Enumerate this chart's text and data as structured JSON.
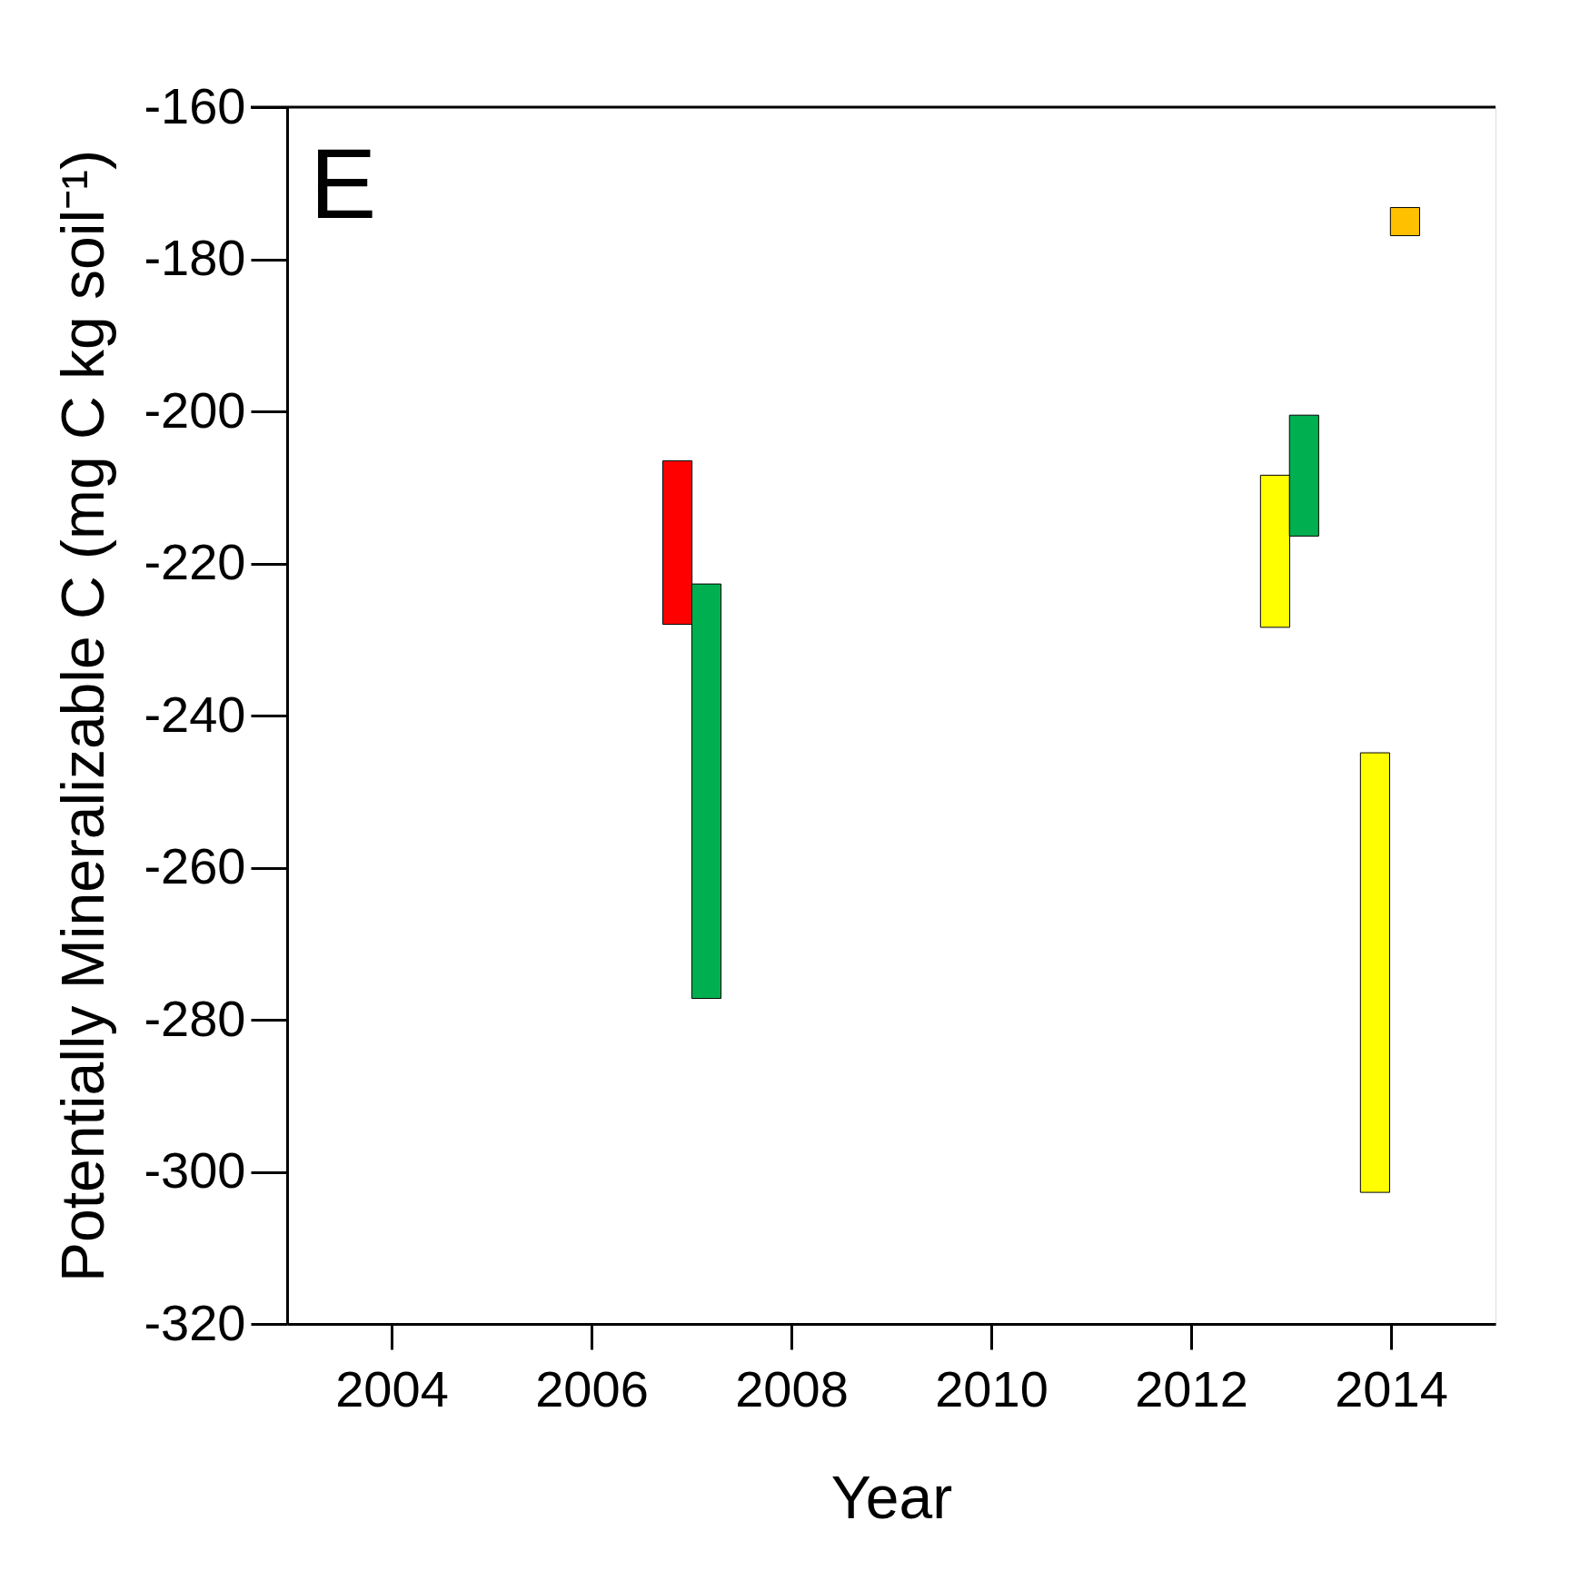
{
  "chart_data": {
    "type": "bar",
    "xlabel": "Year",
    "ylabel": "Potentially Mineralizable C (mg C kg soil⁻¹)",
    "x": [
      2006.86,
      2007.15,
      2012.84,
      2013.13,
      2013.84,
      2014.14
    ],
    "base": [
      -228.0,
      -277.2,
      -228.4,
      -216.4,
      -302.7,
      -176.9
    ],
    "values": [
      21.5,
      54.5,
      20.0,
      15.9,
      57.8,
      3.7
    ],
    "colors": [
      "#ff0000",
      "#00b050",
      "#ffff00",
      "#00b050",
      "#ffff00",
      "#ffc000"
    ],
    "xlim": [
      2003,
      2015
    ],
    "xticks": [
      2004,
      2006,
      2008,
      2010,
      2012,
      2014
    ],
    "ylim": [
      -320,
      -160
    ],
    "yticks": [
      -320,
      -300,
      -280,
      -260,
      -240,
      -220,
      -200,
      -180,
      -160
    ],
    "annotations": [
      "E"
    ],
    "grid": false
  }
}
